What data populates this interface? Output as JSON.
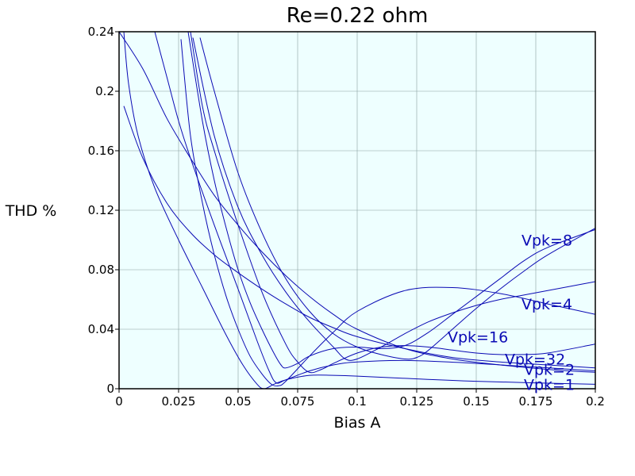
{
  "chart_data": {
    "type": "line",
    "title": "Re=0.22 ohm",
    "xlabel": "Bias A",
    "ylabel": "THD %",
    "xlim": [
      0,
      0.2
    ],
    "ylim": [
      0,
      0.24
    ],
    "x_ticks": [
      "0",
      "0.025",
      "0.05",
      "0.075",
      "0.1",
      "0.125",
      "0.15",
      "0.175",
      "0.2"
    ],
    "y_ticks": [
      "0",
      "0.04",
      "0.08",
      "0.12",
      "0.16",
      "0.2",
      "0.24"
    ],
    "grid": true,
    "plot_background": "#eeffff",
    "series_color": "#0a0ab4",
    "series": [
      {
        "name": "Vpk=1",
        "x": [
          0.002,
          0.004,
          0.008,
          0.015,
          0.025,
          0.035,
          0.045,
          0.052,
          0.058,
          0.061,
          0.065,
          0.07,
          0.08,
          0.09,
          0.1,
          0.12,
          0.15,
          0.2
        ],
        "y": [
          0.24,
          0.205,
          0.17,
          0.135,
          0.1,
          0.068,
          0.036,
          0.016,
          0.003,
          0.0,
          0.003,
          0.006,
          0.009,
          0.009,
          0.0085,
          0.007,
          0.005,
          0.003
        ]
      },
      {
        "name": "Vpk=2",
        "x": [
          0.015,
          0.02,
          0.025,
          0.03,
          0.04,
          0.05,
          0.058,
          0.063,
          0.066,
          0.07,
          0.08,
          0.09,
          0.1,
          0.12,
          0.15,
          0.2
        ],
        "y": [
          0.24,
          0.21,
          0.18,
          0.155,
          0.11,
          0.067,
          0.032,
          0.012,
          0.004,
          0.006,
          0.012,
          0.016,
          0.018,
          0.019,
          0.017,
          0.012
        ]
      },
      {
        "name": "Vpk=4",
        "x": [
          0.026,
          0.03,
          0.035,
          0.04,
          0.045,
          0.05,
          0.055,
          0.06,
          0.064,
          0.067,
          0.07,
          0.08,
          0.09,
          0.1,
          0.12,
          0.14,
          0.16,
          0.18,
          0.2
        ],
        "y": [
          0.235,
          0.17,
          0.125,
          0.09,
          0.062,
          0.04,
          0.022,
          0.01,
          0.003,
          0.002,
          0.005,
          0.022,
          0.038,
          0.052,
          0.066,
          0.068,
          0.064,
          0.057,
          0.05
        ]
      },
      {
        "name": "Vpk=8",
        "x": [
          0.029,
          0.035,
          0.04,
          0.045,
          0.05,
          0.055,
          0.06,
          0.065,
          0.068,
          0.07,
          0.075,
          0.08,
          0.09,
          0.1,
          0.11,
          0.12,
          0.13,
          0.14,
          0.15,
          0.16,
          0.17,
          0.18,
          0.2
        ],
        "y": [
          0.24,
          0.18,
          0.14,
          0.108,
          0.08,
          0.058,
          0.04,
          0.024,
          0.016,
          0.014,
          0.017,
          0.022,
          0.027,
          0.028,
          0.027,
          0.029,
          0.038,
          0.05,
          0.062,
          0.074,
          0.086,
          0.095,
          0.107
        ]
      },
      {
        "name": "Vpk=16",
        "x": [
          0.03,
          0.035,
          0.04,
          0.05,
          0.06,
          0.07,
          0.075,
          0.08,
          0.085,
          0.09,
          0.1,
          0.11,
          0.12,
          0.13,
          0.14,
          0.15,
          0.16,
          0.17,
          0.18,
          0.2
        ],
        "y": [
          0.24,
          0.19,
          0.16,
          0.11,
          0.065,
          0.03,
          0.018,
          0.011,
          0.013,
          0.017,
          0.024,
          0.028,
          0.029,
          0.028,
          0.026,
          0.024,
          0.023,
          0.023,
          0.024,
          0.03
        ]
      },
      {
        "name": "Vpk=32",
        "x": [
          0.031,
          0.04,
          0.05,
          0.06,
          0.07,
          0.08,
          0.09,
          0.095,
          0.1,
          0.11,
          0.12,
          0.13,
          0.14,
          0.15,
          0.16,
          0.17,
          0.18,
          0.19,
          0.2
        ],
        "y": [
          0.236,
          0.17,
          0.122,
          0.09,
          0.065,
          0.045,
          0.028,
          0.02,
          0.02,
          0.028,
          0.037,
          0.045,
          0.051,
          0.056,
          0.06,
          0.063,
          0.066,
          0.069,
          0.072
        ]
      },
      {
        "name": "",
        "x": [
          0.034,
          0.04,
          0.05,
          0.06,
          0.07,
          0.08,
          0.09,
          0.1,
          0.11,
          0.12,
          0.125,
          0.13,
          0.14,
          0.15,
          0.16,
          0.17,
          0.18,
          0.2
        ],
        "y": [
          0.236,
          0.2,
          0.145,
          0.105,
          0.074,
          0.052,
          0.037,
          0.028,
          0.023,
          0.02,
          0.021,
          0.026,
          0.04,
          0.054,
          0.067,
          0.079,
          0.09,
          0.108
        ]
      },
      {
        "name": "",
        "x": [
          0.0,
          0.01,
          0.02,
          0.03,
          0.04,
          0.05,
          0.06,
          0.07,
          0.08,
          0.09,
          0.1,
          0.12,
          0.14,
          0.16,
          0.18,
          0.2
        ],
        "y": [
          0.24,
          0.215,
          0.182,
          0.155,
          0.13,
          0.11,
          0.092,
          0.076,
          0.062,
          0.05,
          0.04,
          0.027,
          0.02,
          0.016,
          0.013,
          0.011
        ]
      },
      {
        "name": "",
        "x": [
          0.002,
          0.01,
          0.02,
          0.03,
          0.04,
          0.05,
          0.06,
          0.07,
          0.08,
          0.09,
          0.1,
          0.12,
          0.14,
          0.16,
          0.18,
          0.2
        ],
        "y": [
          0.19,
          0.155,
          0.125,
          0.105,
          0.09,
          0.078,
          0.067,
          0.057,
          0.048,
          0.041,
          0.035,
          0.027,
          0.021,
          0.018,
          0.016,
          0.014
        ]
      }
    ],
    "annotations": [
      {
        "text": "Vpk=8",
        "x": 0.169,
        "y": 0.1
      },
      {
        "text": "Vpk=4",
        "x": 0.169,
        "y": 0.057
      },
      {
        "text": "Vpk=16",
        "x": 0.138,
        "y": 0.035
      },
      {
        "text": "Vpk=32",
        "x": 0.162,
        "y": 0.02
      },
      {
        "text": "Vpk=2",
        "x": 0.17,
        "y": 0.013
      },
      {
        "text": "Vpk=1",
        "x": 0.17,
        "y": 0.003
      }
    ]
  }
}
